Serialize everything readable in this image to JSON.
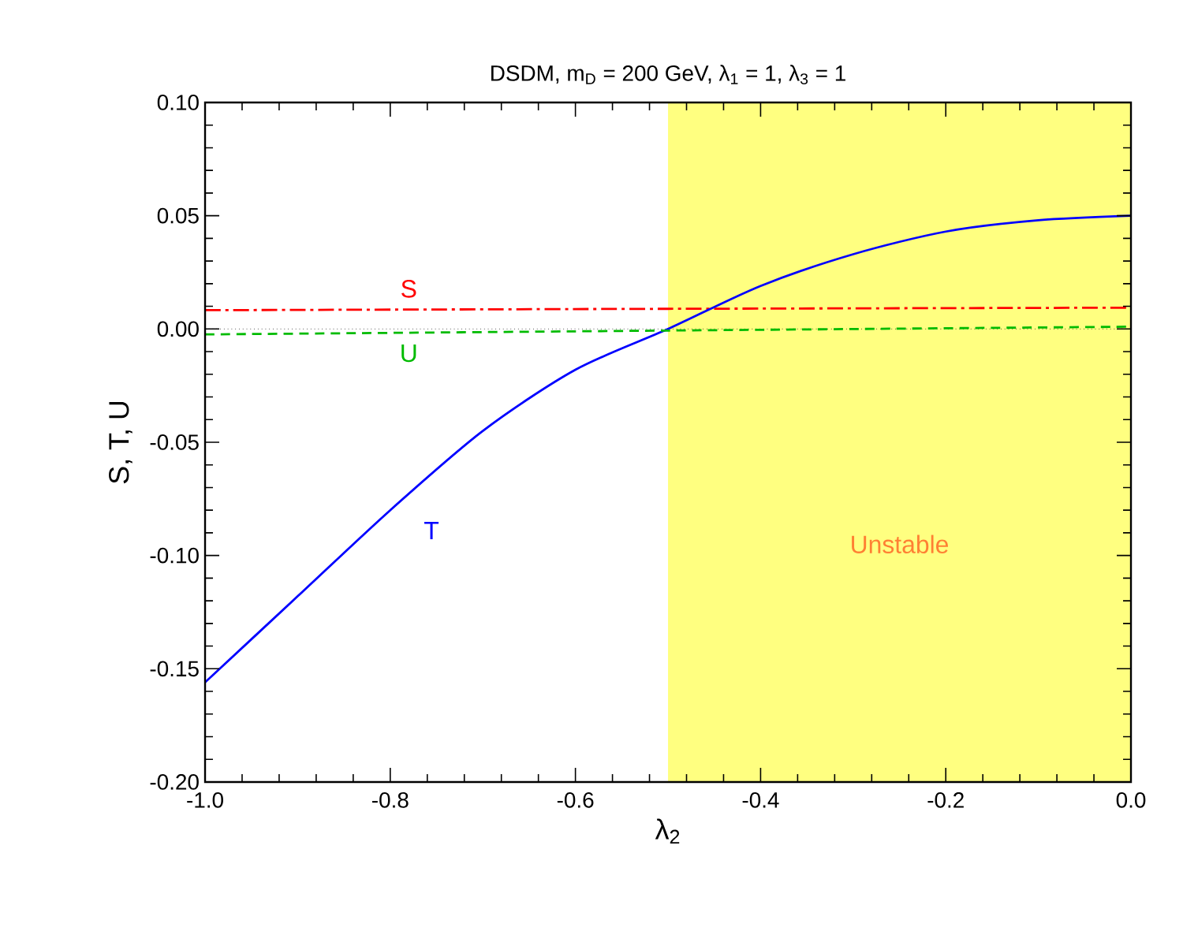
{
  "chart_data": {
    "type": "line",
    "title": "DSDM, m$_{D}$ = 200 GeV, λ$_{1}$ = 1, λ$_{3}$ = 1",
    "xlabel": "λ$_{2}$",
    "ylabel": "S,  T,  U",
    "xlim": [
      -1.0,
      0.0
    ],
    "xticks": [
      {
        "value": -1.0,
        "label": "-1.0"
      },
      {
        "value": -0.8,
        "label": "-0.8"
      },
      {
        "value": -0.6,
        "label": "-0.6"
      },
      {
        "value": -0.4,
        "label": "-0.4"
      },
      {
        "value": -0.2,
        "label": "-0.2"
      },
      {
        "value": 0.0,
        "label": "0.0"
      }
    ],
    "ylim": [
      -0.2,
      0.1
    ],
    "yticks": [
      {
        "value": -0.2,
        "label": "-0.20"
      },
      {
        "value": -0.15,
        "label": "-0.15"
      },
      {
        "value": -0.1,
        "label": "-0.10"
      },
      {
        "value": -0.05,
        "label": "-0.05"
      },
      {
        "value": 0.0,
        "label": "0.00"
      },
      {
        "value": 0.05,
        "label": "0.05"
      },
      {
        "value": 0.1,
        "label": "0.10"
      }
    ],
    "series": [
      {
        "name": "S",
        "color": "#ff0000",
        "line_style": "dashdot",
        "x": [
          -1.0,
          -0.5,
          0.0
        ],
        "values": [
          0.0083,
          0.0089,
          0.0094
        ]
      },
      {
        "name": "T",
        "color": "#0000ff",
        "line_style": "solid",
        "x": [
          -1.0,
          -0.9,
          -0.8,
          -0.7,
          -0.6,
          -0.5,
          -0.4,
          -0.3,
          -0.2,
          -0.1,
          0.0
        ],
        "values": [
          -0.156,
          -0.118,
          -0.08,
          -0.045,
          -0.018,
          0.0,
          0.019,
          0.033,
          0.043,
          0.048,
          0.05
        ]
      },
      {
        "name": "U",
        "color": "#00bb00",
        "line_style": "dashed",
        "x": [
          -1.0,
          -0.5,
          0.0
        ],
        "values": [
          -0.0024,
          -0.0007,
          0.001
        ]
      }
    ],
    "bands": [
      {
        "axis": "x",
        "from": -0.5,
        "to": 0.0,
        "label": "Unstable",
        "color": "#ffff80"
      }
    ],
    "ref_lines": [
      {
        "axis": "y",
        "value": 0.0,
        "color": "#000000",
        "line_style": "dotted"
      }
    ],
    "grid": false,
    "marker": "none"
  }
}
